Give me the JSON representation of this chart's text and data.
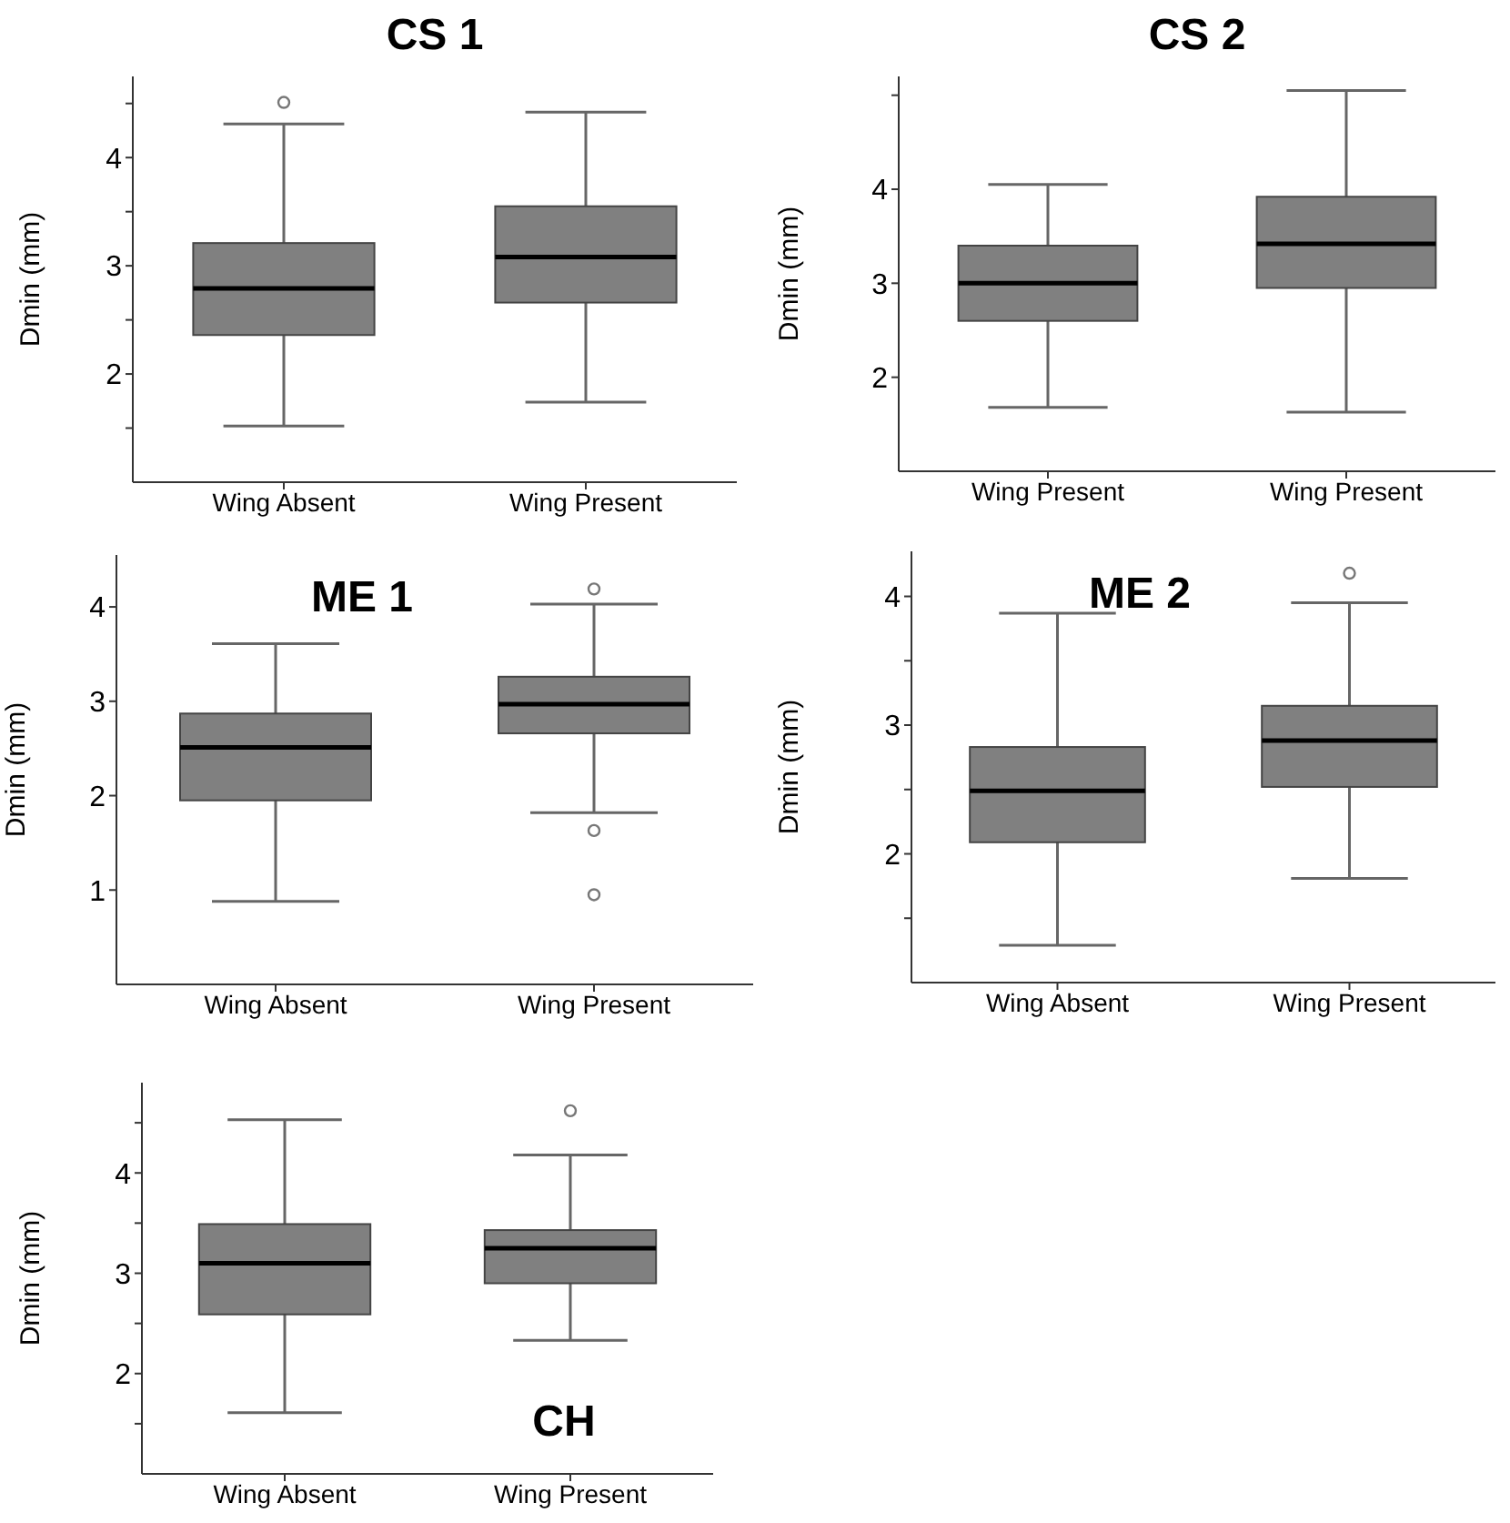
{
  "chart_data": [
    {
      "type": "box",
      "title": "CS 1",
      "ylabel": "Dmin (mm)",
      "categories": [
        "Wing Absent",
        "Wing Present"
      ],
      "color": "#808080",
      "ylim": [
        1,
        4.75
      ],
      "yticks": [
        {
          "value": 1.5,
          "label": null
        },
        2,
        {
          "value": 2.5,
          "label": null
        },
        3,
        {
          "value": 3.5,
          "label": null
        },
        4,
        {
          "value": 4.5,
          "label": null
        }
      ],
      "boxes": [
        {
          "low": 1.52,
          "q1": 2.36,
          "median": 2.79,
          "q3": 3.21,
          "high": 4.31,
          "outliers": [
            4.51
          ]
        },
        {
          "low": 1.74,
          "q1": 2.66,
          "median": 3.08,
          "q3": 3.55,
          "high": 4.42
        }
      ]
    },
    {
      "type": "box",
      "title": "CS 2",
      "ylabel": "Dmin (mm)",
      "categories": [
        "Wing Present",
        "Wing Present"
      ],
      "color": "#808080",
      "ylim": [
        1,
        5.2
      ],
      "yticks": [
        2,
        3,
        4,
        {
          "value": 5,
          "label": null
        }
      ],
      "boxes": [
        {
          "low": 1.68,
          "q1": 2.6,
          "median": 3.0,
          "q3": 3.4,
          "high": 4.05
        },
        {
          "low": 1.63,
          "q1": 2.95,
          "median": 3.42,
          "q3": 3.92,
          "high": 5.05
        }
      ]
    },
    {
      "type": "box",
      "title": "ME 1",
      "ylabel": "Dmin (mm)",
      "categories": [
        "Wing Absent",
        "Wing Present"
      ],
      "color": "#808080",
      "ylim": [
        0,
        4.55
      ],
      "yticks": [
        1,
        2,
        3,
        4
      ],
      "boxes": [
        {
          "low": 0.88,
          "q1": 1.95,
          "median": 2.51,
          "q3": 2.87,
          "high": 3.61
        },
        {
          "low": 1.82,
          "q1": 2.66,
          "median": 2.97,
          "q3": 3.26,
          "high": 4.03,
          "outliers": [
            4.19,
            1.63,
            0.95
          ]
        }
      ]
    },
    {
      "type": "box",
      "title": "ME 2",
      "ylabel": "Dmin (mm)",
      "categories": [
        "Wing Absent",
        "Wing Present"
      ],
      "color": "#808080",
      "ylim": [
        1,
        4.35
      ],
      "yticks": [
        {
          "value": 1.5,
          "label": null
        },
        2,
        {
          "value": 2.5,
          "label": null
        },
        3,
        {
          "value": 3.5,
          "label": null
        },
        4
      ],
      "boxes": [
        {
          "low": 1.29,
          "q1": 2.09,
          "median": 2.49,
          "q3": 2.83,
          "high": 3.87
        },
        {
          "low": 1.81,
          "q1": 2.52,
          "median": 2.88,
          "q3": 3.15,
          "high": 3.95,
          "outliers": [
            4.18
          ]
        }
      ]
    },
    {
      "type": "box",
      "title": "CH",
      "ylabel": "Dmin (mm)",
      "categories": [
        "Wing Absent",
        "Wing Present"
      ],
      "color": "#808080",
      "ylim": [
        1,
        4.9
      ],
      "yticks": [
        {
          "value": 1.5,
          "label": null
        },
        2,
        {
          "value": 2.5,
          "label": null
        },
        3,
        {
          "value": 3.5,
          "label": null
        },
        4,
        {
          "value": 4.5,
          "label": null
        }
      ],
      "boxes": [
        {
          "low": 1.61,
          "q1": 2.59,
          "median": 3.1,
          "q3": 3.49,
          "high": 4.53
        },
        {
          "low": 2.33,
          "q1": 2.9,
          "median": 3.25,
          "q3": 3.43,
          "high": 4.18,
          "outliers": [
            4.62
          ]
        }
      ]
    }
  ]
}
